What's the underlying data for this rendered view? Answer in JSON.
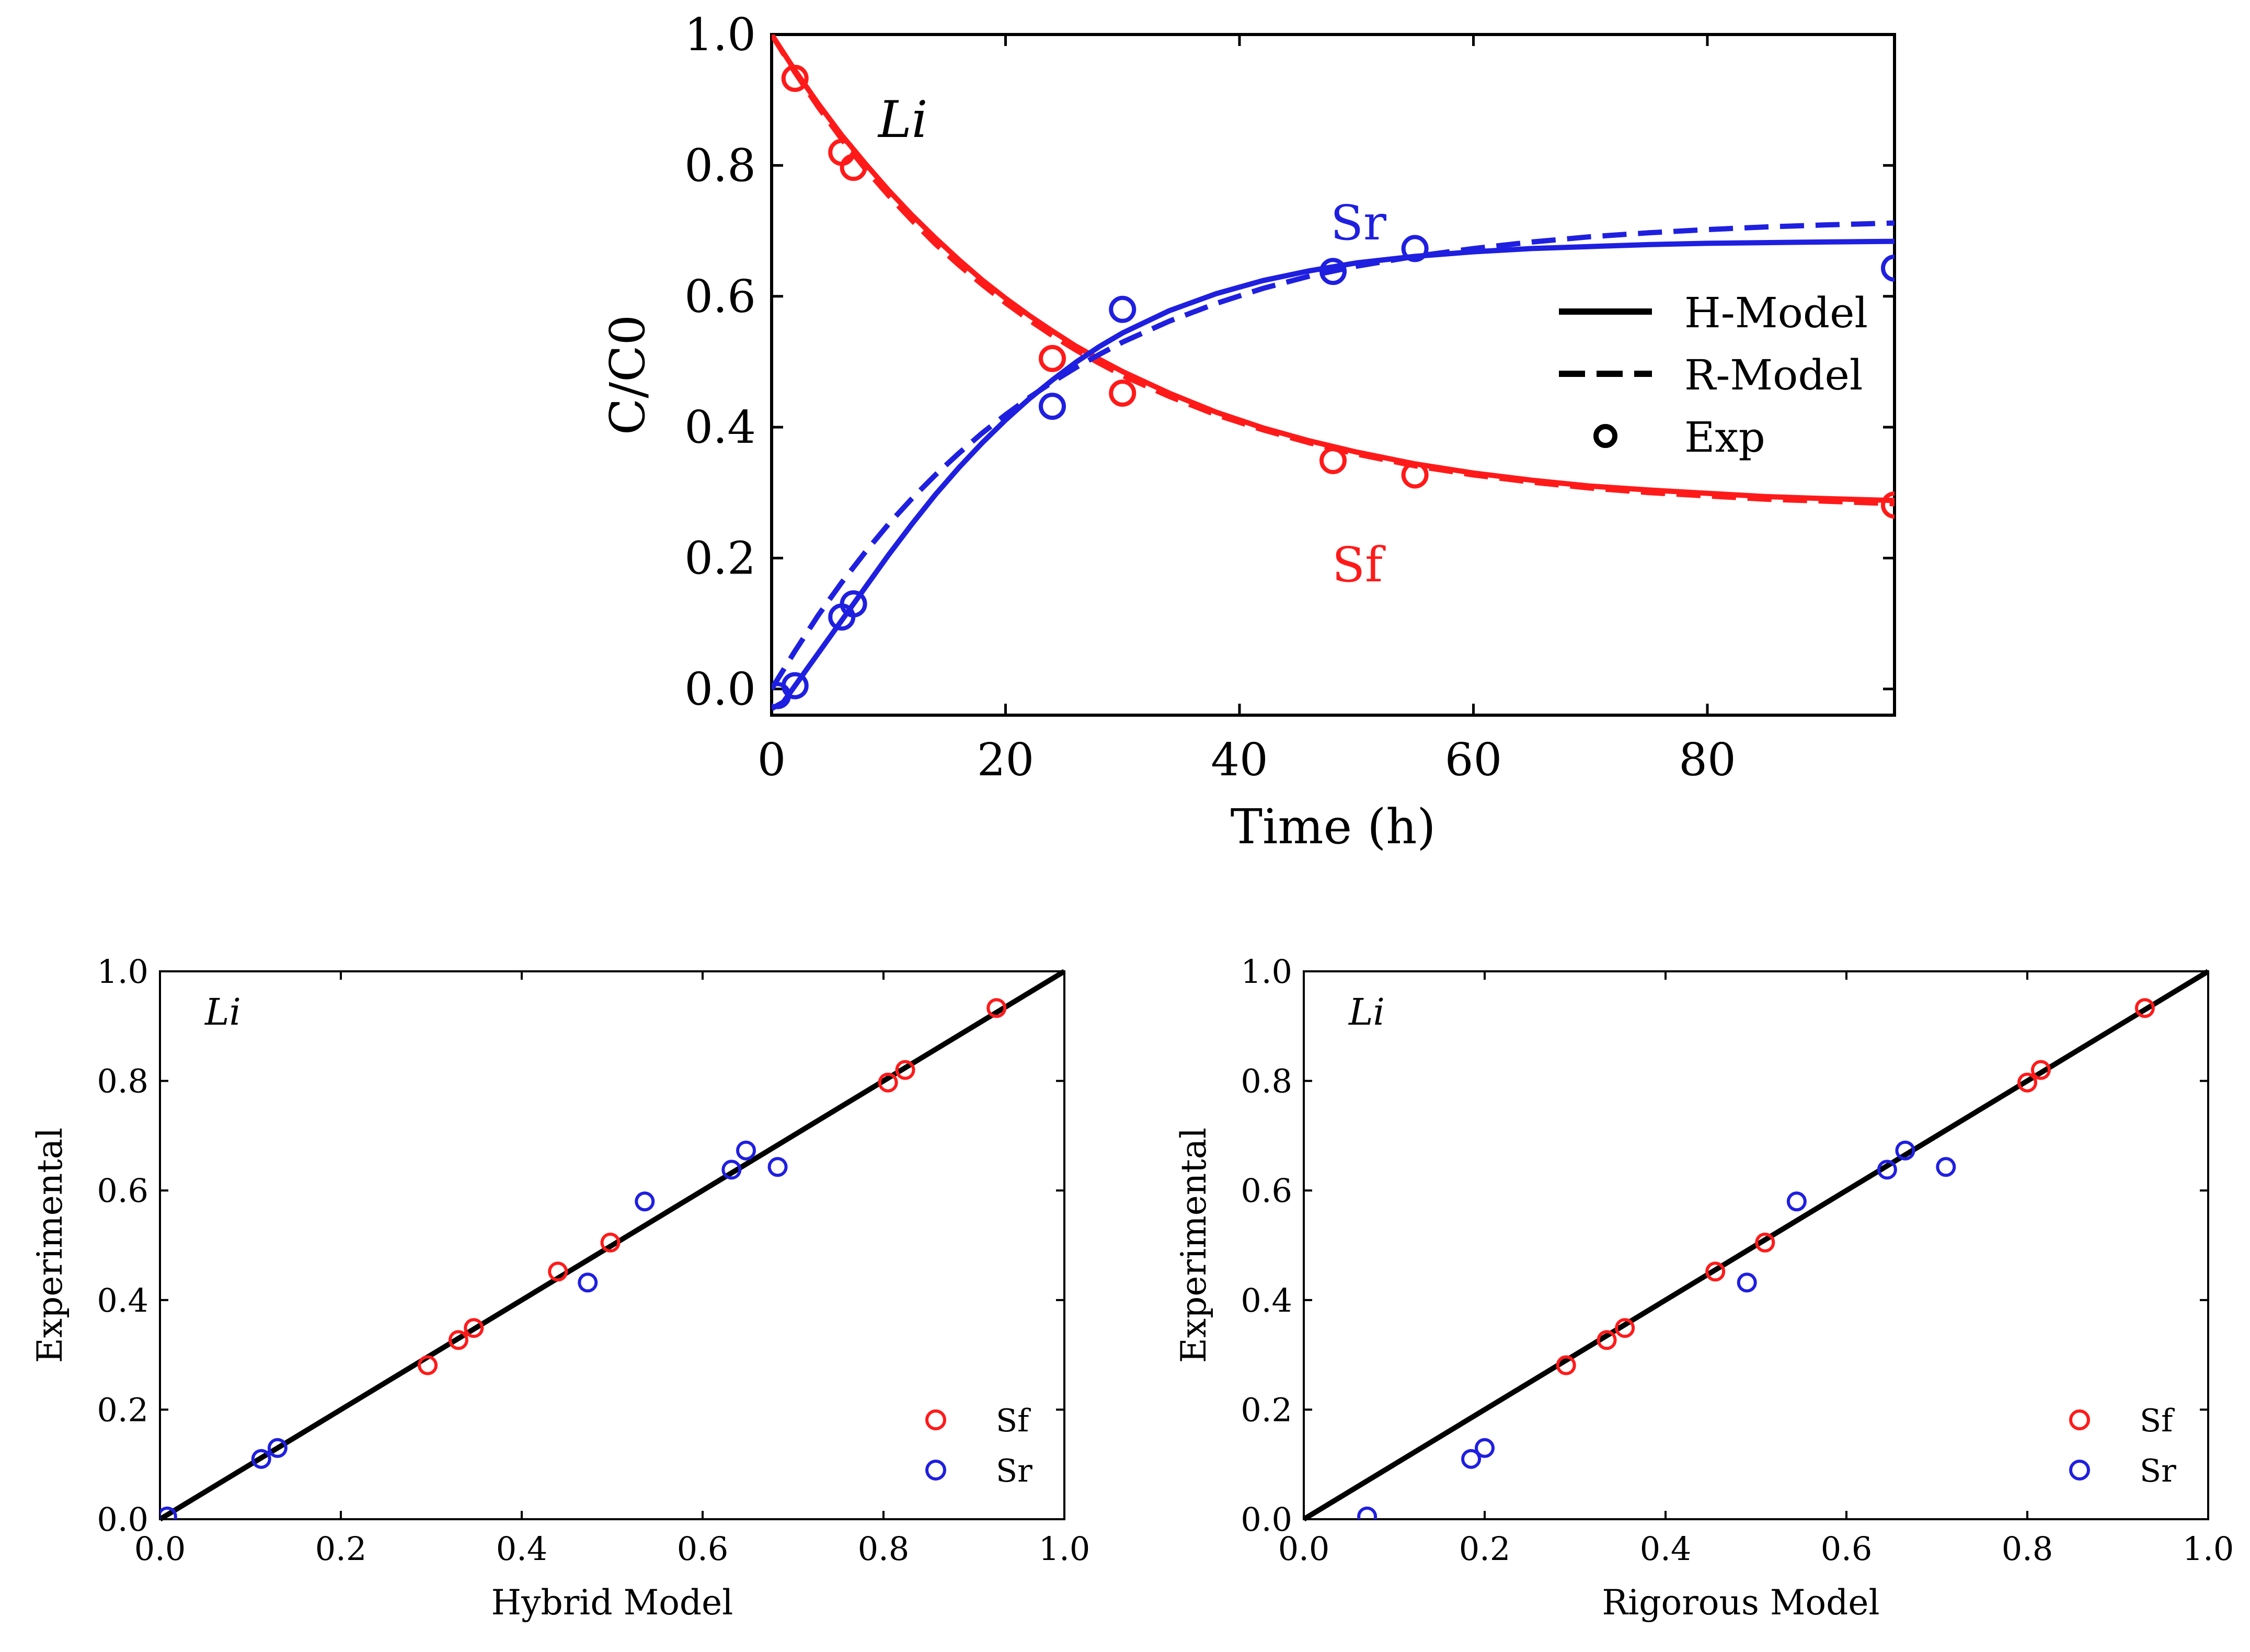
{
  "chart_data": [
    {
      "type": "line",
      "title": "",
      "panel_label": "Li",
      "xlabel": "Time (h)",
      "ylabel": "C/C0",
      "xlim": [
        0,
        96
      ],
      "ylim": [
        -0.04,
        1.0
      ],
      "xticks": [
        0,
        20,
        40,
        60,
        80
      ],
      "xtick_labels": [
        "0",
        "20",
        "40",
        "60",
        "80"
      ],
      "yticks": [
        0.0,
        0.2,
        0.4,
        0.6,
        0.8,
        1.0
      ],
      "ytick_labels": [
        "0.0",
        "0.2",
        "0.4",
        "0.6",
        "0.8",
        "1.0"
      ],
      "annotations": [
        {
          "text": "Sr",
          "x": 50,
          "y": 0.72,
          "color": "#1f1fe0"
        },
        {
          "text": "Sf",
          "x": 50,
          "y": 0.19,
          "color": "#ff1a1a"
        }
      ],
      "legend": {
        "position": "right",
        "entries": [
          {
            "label": "H-Model",
            "style": "solid"
          },
          {
            "label": "R-Model",
            "style": "dashed"
          },
          {
            "label": "Exp",
            "style": "marker"
          }
        ]
      },
      "series": [
        {
          "name": "Sf H-Model",
          "color": "#ff1a1a",
          "style": "solid",
          "x": [
            0,
            2,
            4,
            6,
            8,
            10,
            12,
            14,
            16,
            18,
            20,
            22,
            24,
            26,
            28,
            30,
            34,
            38,
            42,
            46,
            50,
            55,
            60,
            65,
            70,
            75,
            80,
            85,
            90,
            96
          ],
          "y": [
            1.0,
            0.945,
            0.894,
            0.846,
            0.803,
            0.762,
            0.724,
            0.689,
            0.656,
            0.625,
            0.597,
            0.571,
            0.547,
            0.524,
            0.504,
            0.485,
            0.452,
            0.423,
            0.399,
            0.379,
            0.362,
            0.344,
            0.33,
            0.319,
            0.31,
            0.304,
            0.299,
            0.294,
            0.291,
            0.288
          ]
        },
        {
          "name": "Sf R-Model",
          "color": "#ff1a1a",
          "style": "dashed",
          "x": [
            0,
            2,
            4,
            6,
            8,
            10,
            12,
            14,
            16,
            18,
            20,
            22,
            24,
            26,
            28,
            30,
            34,
            38,
            42,
            46,
            50,
            55,
            60,
            65,
            70,
            75,
            80,
            85,
            90,
            96
          ],
          "y": [
            1.0,
            0.942,
            0.889,
            0.84,
            0.795,
            0.754,
            0.716,
            0.68,
            0.648,
            0.618,
            0.59,
            0.564,
            0.54,
            0.518,
            0.498,
            0.479,
            0.447,
            0.419,
            0.396,
            0.376,
            0.359,
            0.341,
            0.327,
            0.316,
            0.307,
            0.3,
            0.295,
            0.29,
            0.287,
            0.283
          ]
        },
        {
          "name": "Sr H-Model",
          "color": "#1f1fe0",
          "style": "solid",
          "x": [
            0,
            1,
            2,
            3,
            4,
            6,
            8,
            10,
            12,
            14,
            16,
            18,
            20,
            22,
            24,
            26,
            28,
            30,
            34,
            38,
            42,
            46,
            50,
            55,
            60,
            65,
            70,
            75,
            80,
            85,
            90,
            96
          ],
          "y": [
            -0.03,
            -0.02,
            0.005,
            0.03,
            0.055,
            0.105,
            0.155,
            0.205,
            0.252,
            0.297,
            0.338,
            0.376,
            0.411,
            0.443,
            0.472,
            0.499,
            0.523,
            0.544,
            0.578,
            0.604,
            0.624,
            0.639,
            0.651,
            0.661,
            0.668,
            0.673,
            0.676,
            0.679,
            0.681,
            0.682,
            0.683,
            0.684
          ]
        },
        {
          "name": "Sr R-Model",
          "color": "#1f1fe0",
          "style": "dashed",
          "x": [
            0,
            2,
            4,
            6,
            8,
            10,
            12,
            14,
            16,
            18,
            20,
            22,
            24,
            26,
            28,
            30,
            34,
            38,
            42,
            46,
            50,
            55,
            60,
            65,
            70,
            75,
            80,
            85,
            90,
            96
          ],
          "y": [
            0.0,
            0.058,
            0.113,
            0.163,
            0.209,
            0.252,
            0.291,
            0.327,
            0.36,
            0.391,
            0.419,
            0.445,
            0.469,
            0.491,
            0.511,
            0.53,
            0.562,
            0.589,
            0.612,
            0.631,
            0.646,
            0.661,
            0.673,
            0.683,
            0.691,
            0.697,
            0.702,
            0.706,
            0.709,
            0.712
          ]
        },
        {
          "name": "Sf Exp",
          "color": "#ff1a1a",
          "style": "marker",
          "x": [
            2,
            6,
            7,
            24,
            30,
            48,
            55,
            96
          ],
          "y": [
            0.933,
            0.82,
            0.797,
            0.505,
            0.452,
            0.349,
            0.327,
            0.281
          ]
        },
        {
          "name": "Sr Exp",
          "color": "#1f1fe0",
          "style": "marker",
          "x": [
            0.5,
            2,
            6,
            7,
            24,
            30,
            48,
            55,
            96
          ],
          "y": [
            -0.01,
            0.005,
            0.11,
            0.13,
            0.432,
            0.58,
            0.638,
            0.673,
            0.643
          ]
        }
      ]
    },
    {
      "type": "scatter",
      "title": "",
      "panel_label": "Li",
      "xlabel": "Hybrid Model",
      "ylabel": "Experimental",
      "xlim": [
        0.0,
        1.0
      ],
      "ylim": [
        0.0,
        1.0
      ],
      "xticks": [
        0.0,
        0.2,
        0.4,
        0.6,
        0.8,
        1.0
      ],
      "xtick_labels": [
        "0.0",
        "0.2",
        "0.4",
        "0.6",
        "0.8",
        "1.0"
      ],
      "yticks": [
        0.0,
        0.2,
        0.4,
        0.6,
        0.8,
        1.0
      ],
      "ytick_labels": [
        "0.0",
        "0.2",
        "0.4",
        "0.6",
        "0.8",
        "1.0"
      ],
      "reference_line": "y = x",
      "legend": {
        "position": "bottom-right",
        "entries": [
          {
            "label": "Sf",
            "color": "#ff1a1a"
          },
          {
            "label": "Sr",
            "color": "#1f1fe0"
          }
        ]
      },
      "series": [
        {
          "name": "Sf",
          "color": "#ff1a1a",
          "x": [
            0.296,
            0.33,
            0.347,
            0.44,
            0.498,
            0.805,
            0.824,
            0.925
          ],
          "y": [
            0.281,
            0.327,
            0.349,
            0.452,
            0.505,
            0.797,
            0.82,
            0.933
          ]
        },
        {
          "name": "Sr",
          "color": "#1f1fe0",
          "x": [
            0.008,
            0.112,
            0.13,
            0.473,
            0.536,
            0.632,
            0.648,
            0.683
          ],
          "y": [
            0.005,
            0.11,
            0.13,
            0.432,
            0.58,
            0.638,
            0.673,
            0.643
          ]
        }
      ]
    },
    {
      "type": "scatter",
      "title": "",
      "panel_label": "Li",
      "xlabel": "Rigorous Model",
      "ylabel": "Experimental",
      "xlim": [
        0.0,
        1.0
      ],
      "ylim": [
        0.0,
        1.0
      ],
      "xticks": [
        0.0,
        0.2,
        0.4,
        0.6,
        0.8,
        1.0
      ],
      "xtick_labels": [
        "0.0",
        "0.2",
        "0.4",
        "0.6",
        "0.8",
        "1.0"
      ],
      "yticks": [
        0.0,
        0.2,
        0.4,
        0.6,
        0.8,
        1.0
      ],
      "ytick_labels": [
        "0.0",
        "0.2",
        "0.4",
        "0.6",
        "0.8",
        "1.0"
      ],
      "reference_line": "y = x",
      "legend": {
        "position": "bottom-right",
        "entries": [
          {
            "label": "Sf",
            "color": "#ff1a1a"
          },
          {
            "label": "Sr",
            "color": "#1f1fe0"
          }
        ]
      },
      "series": [
        {
          "name": "Sf",
          "color": "#ff1a1a",
          "x": [
            0.29,
            0.335,
            0.355,
            0.455,
            0.51,
            0.8,
            0.815,
            0.93
          ],
          "y": [
            0.281,
            0.327,
            0.349,
            0.452,
            0.505,
            0.797,
            0.82,
            0.933
          ]
        },
        {
          "name": "Sr",
          "color": "#1f1fe0",
          "x": [
            0.07,
            0.185,
            0.2,
            0.49,
            0.545,
            0.645,
            0.665,
            0.71
          ],
          "y": [
            0.005,
            0.11,
            0.13,
            0.432,
            0.58,
            0.638,
            0.673,
            0.643
          ]
        }
      ]
    }
  ]
}
